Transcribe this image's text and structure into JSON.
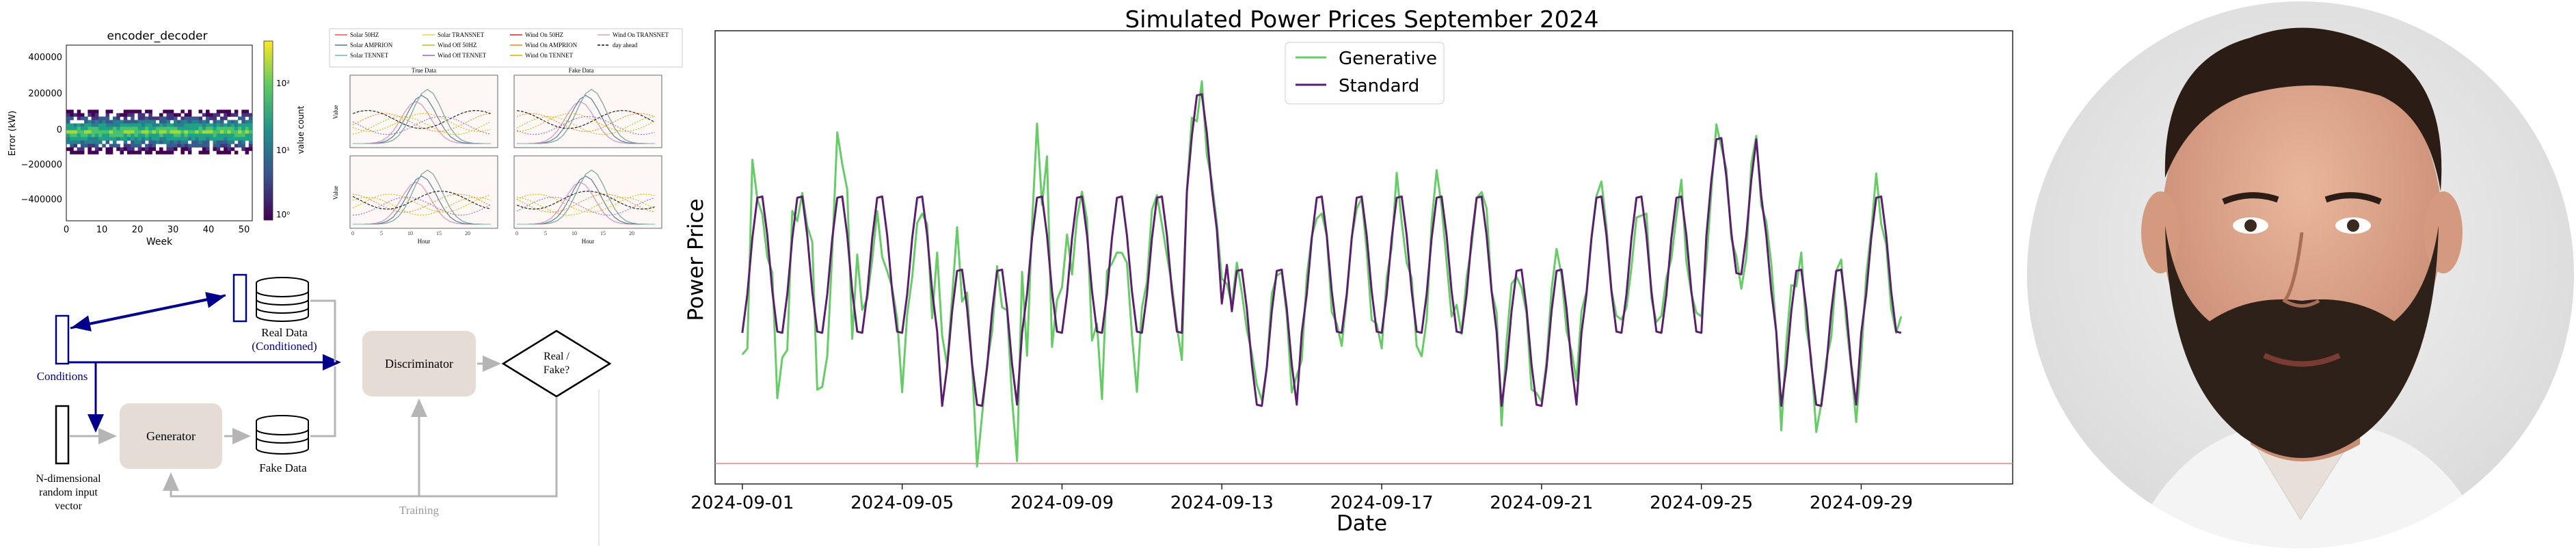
{
  "heatmap_chart": {
    "title": "encoder_decoder",
    "xlabel": "Week",
    "ylabel": "Error (kW)",
    "cbar_label": "value count",
    "xticks": [
      "0",
      "10",
      "20",
      "30",
      "40",
      "50"
    ],
    "yticks": [
      "400000",
      "200000",
      "0",
      "−200000",
      "−400000"
    ],
    "cbar_ticks": [
      "10²",
      "10¹",
      "10⁰"
    ]
  },
  "ts_grid": {
    "legend": [
      "Solar 50HZ",
      "Solar TRANSNET",
      "Wind On 50HZ",
      "Wind On TRANSNET",
      "Solar AMPRION",
      "Wind Off 50HZ",
      "Wind On AMPRION",
      "day ahead",
      "Solar TENNET",
      "Wind Off TENNET",
      "Wind On TENNET"
    ],
    "col_titles": [
      "True Data",
      "Fake Data"
    ],
    "ylabel": "Value",
    "xlabel": "Hour",
    "xticks": [
      "0",
      "5",
      "10",
      "15",
      "20"
    ]
  },
  "gan_diagram": {
    "conditions": "Conditions",
    "real_data": "Real Data",
    "real_data_sub": "(Conditioned)",
    "generator": "Generator",
    "fake_data": "Fake Data",
    "discriminator": "Discriminator",
    "decision_line1": "Real /",
    "decision_line2": "Fake?",
    "noise_line1": "N-dimensional",
    "noise_line2": "random input",
    "noise_line3": "vector",
    "training": "Training",
    "colors": {
      "conditions": "#00008b",
      "box": "#e5dcd5",
      "arrow": "#b5b5b5"
    }
  },
  "chart_data": {
    "type": "line",
    "title": "Simulated Power Prices September 2024",
    "xlabel": "Date",
    "ylabel": "Power Price",
    "xticks": [
      "2024-09-01",
      "2024-09-05",
      "2024-09-09",
      "2024-09-13",
      "2024-09-17",
      "2024-09-21",
      "2024-09-25",
      "2024-09-29"
    ],
    "x_range": [
      "2024-08-31",
      "2024-10-01"
    ],
    "y_range": [
      -0.55,
      1.0
    ],
    "grid": false,
    "legend_position": "top-center",
    "reference_line": {
      "y": -0.48,
      "color": "#f08080"
    },
    "series": [
      {
        "name": "Generative",
        "color": "#66cc66"
      },
      {
        "name": "Standard",
        "color": "#5c1e6e"
      }
    ]
  },
  "photo": {
    "icon": "person-portrait",
    "background": "#e8e8e8"
  }
}
